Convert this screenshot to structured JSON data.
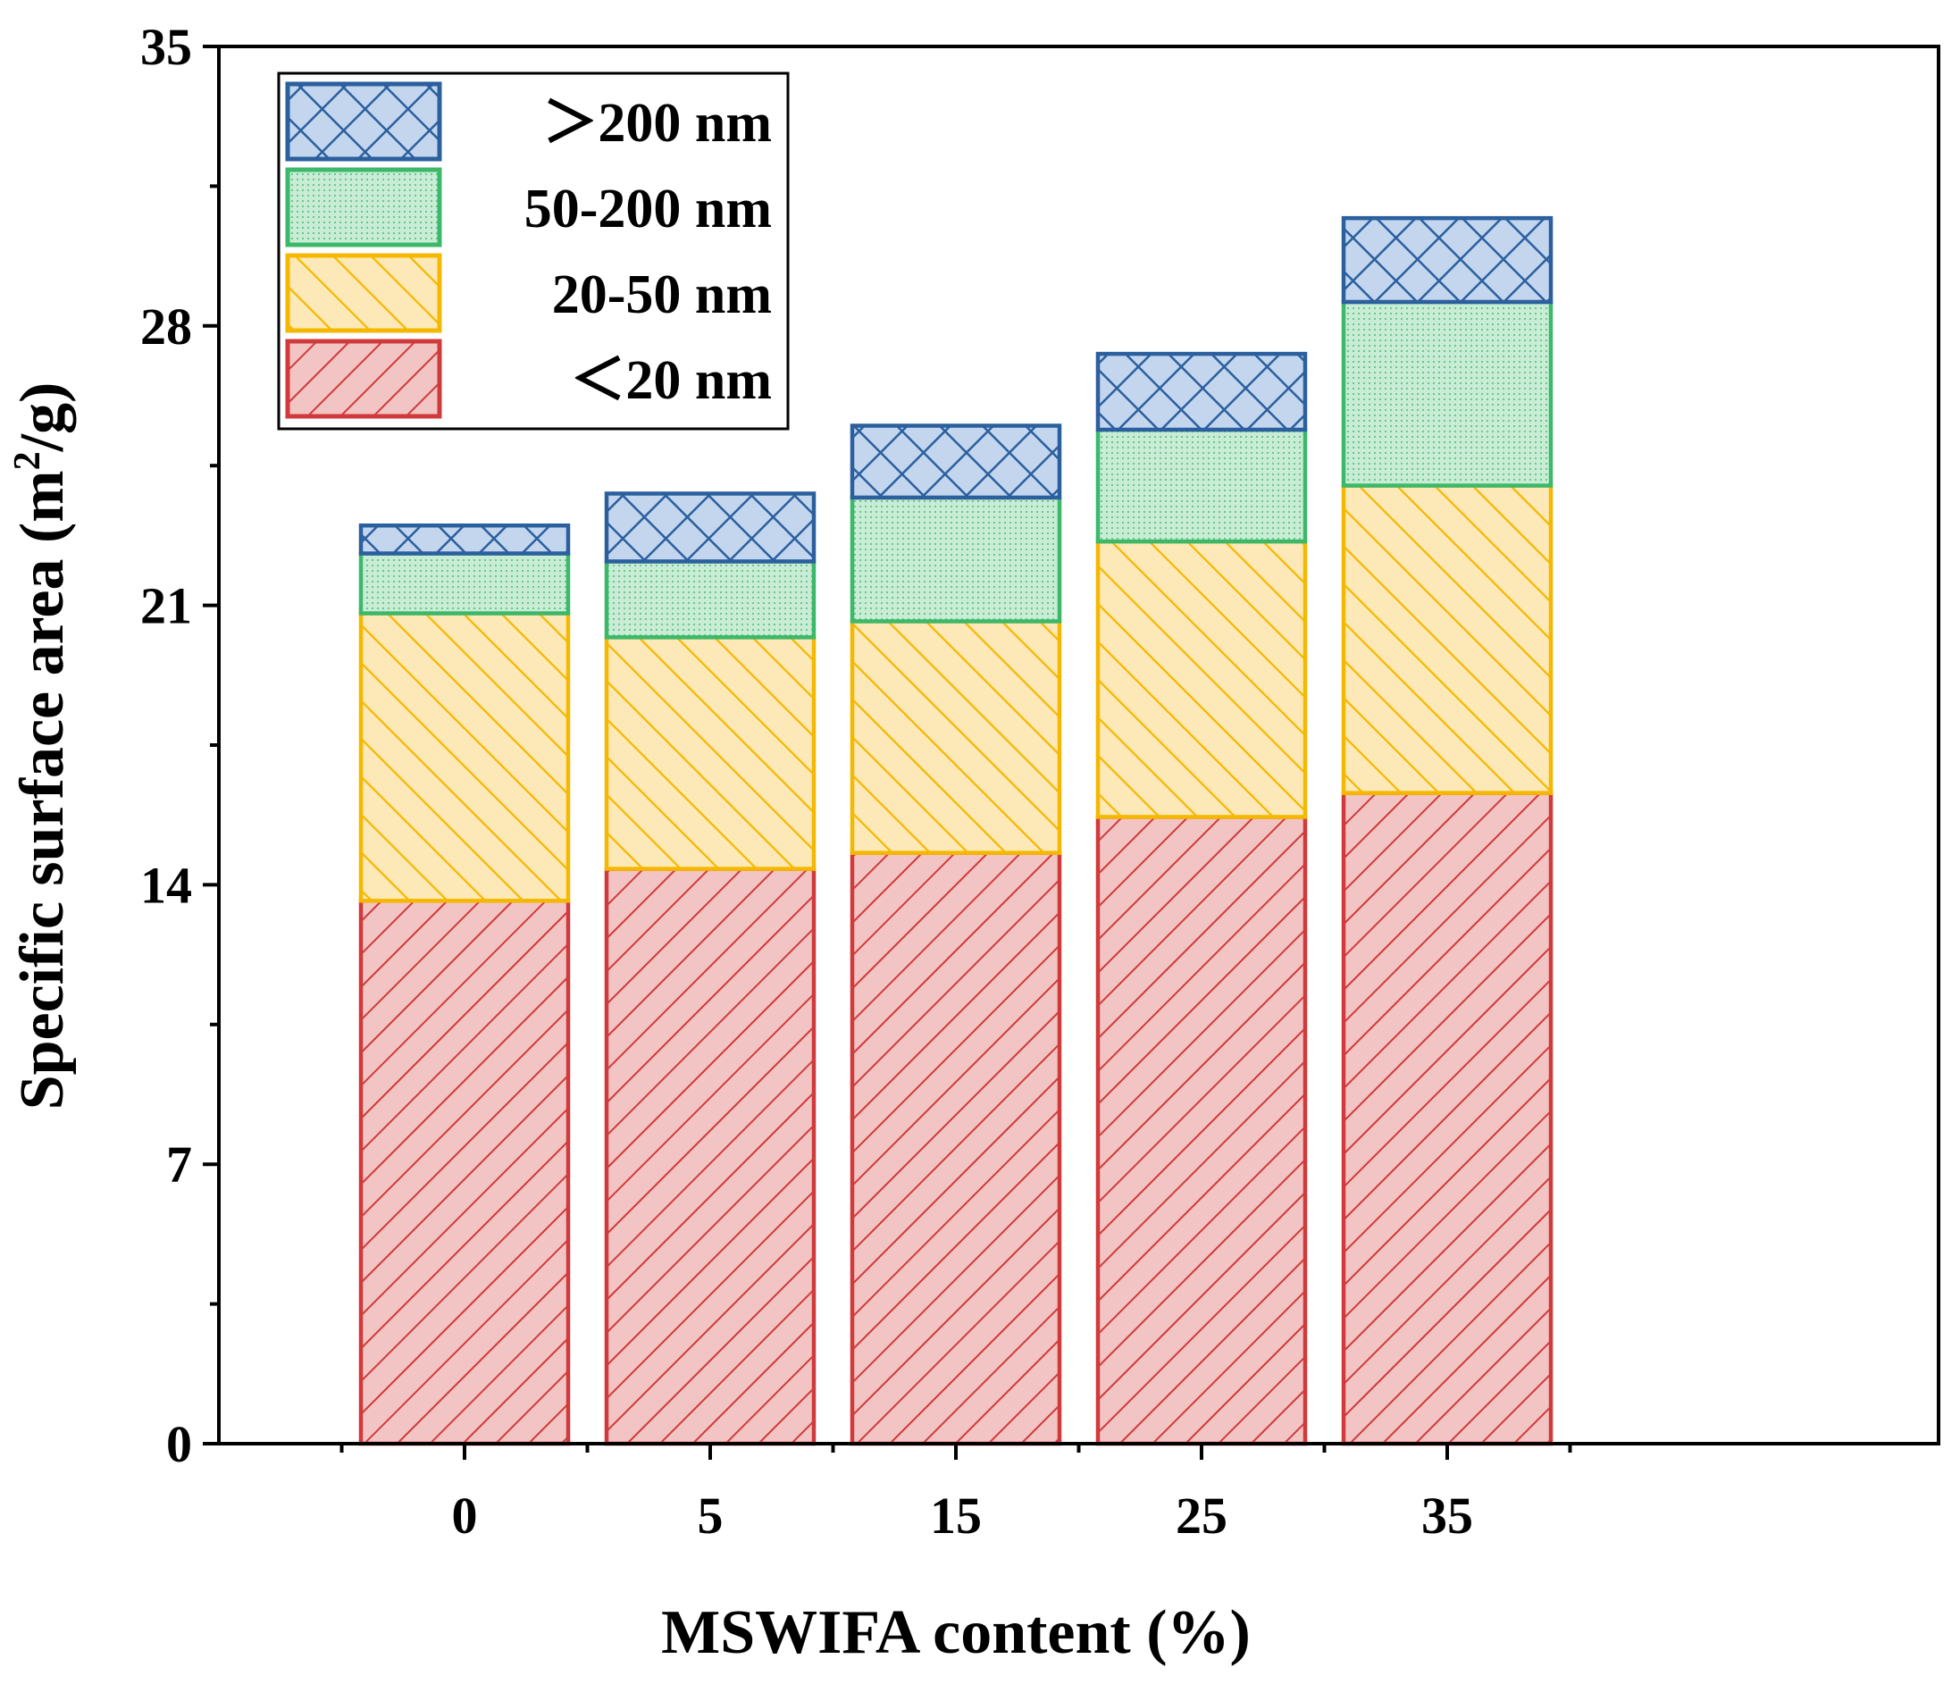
{
  "chart_data": {
    "type": "bar",
    "stacked": true,
    "xlabel": "MSWIFA content (%)",
    "ylabel_main": "Specific surface area (m",
    "ylabel_sup": "2",
    "ylabel_end": "/g)",
    "ylim": [
      0,
      35
    ],
    "yticks": [
      0,
      7,
      14,
      21,
      28,
      35
    ],
    "categories": [
      "0",
      "5",
      "15",
      "25",
      "35"
    ],
    "series": [
      {
        "name": "＜20  nm",
        "values": [
          13.6,
          14.4,
          14.8,
          15.7,
          16.3
        ],
        "stroke": "#d03a3a",
        "fill": "#f2c4c4",
        "pattern": "diag-forward"
      },
      {
        "name": "20-50  nm",
        "values": [
          7.2,
          5.8,
          5.8,
          6.9,
          7.7
        ],
        "stroke": "#f5b800",
        "fill": "#fde9b8",
        "pattern": "diag-back"
      },
      {
        "name": "50-200 nm",
        "values": [
          1.5,
          1.9,
          3.1,
          2.8,
          4.6
        ],
        "stroke": "#3cb86a",
        "fill": "#c9ecd5",
        "pattern": "dots"
      },
      {
        "name": "＞200 nm",
        "values": [
          0.7,
          1.7,
          1.8,
          1.9,
          2.1
        ],
        "stroke": "#2b5f9e",
        "fill": "#c3d6ee",
        "pattern": "crosshatch"
      }
    ],
    "legend_position": "top-left",
    "legend_order": [
      "＞200 nm",
      "50-200 nm",
      "20-50  nm",
      "＜20  nm"
    ]
  }
}
